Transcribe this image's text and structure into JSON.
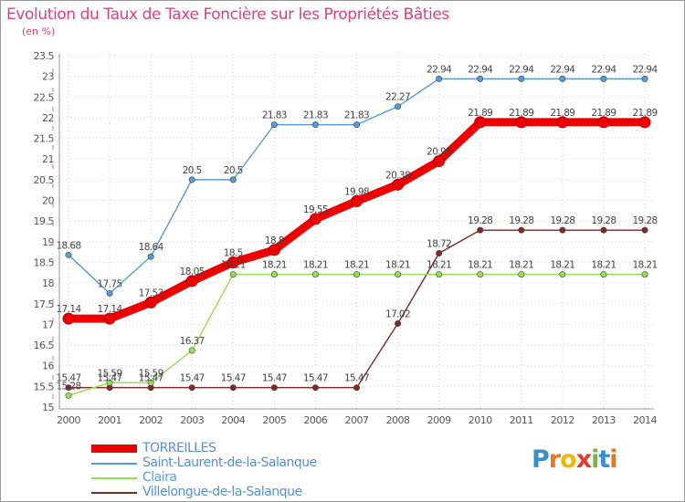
{
  "chart_data": {
    "type": "line",
    "title": "Evolution du Taux de Taxe Foncière sur les Propriétés Bâties",
    "ylabel": "(en %)",
    "xlabel": "",
    "categories": [
      "2000",
      "2001",
      "2002",
      "2003",
      "2004",
      "2005",
      "2006",
      "2007",
      "2008",
      "2009",
      "2010",
      "2011",
      "2012",
      "2013",
      "2014"
    ],
    "ylim": [
      15,
      23.5
    ],
    "yticks": [
      "15",
      "15.5",
      "16",
      "16.5",
      "17",
      "17.5",
      "18",
      "18.5",
      "19",
      "19.5",
      "20",
      "20.5",
      "21",
      "21.5",
      "22",
      "22.5",
      "23",
      "23.5"
    ],
    "grid": "dotted",
    "legend_position": "bottom-left",
    "series": [
      {
        "name": "TORREILLES",
        "color": "#ee0000",
        "width": "thick",
        "values": [
          17.14,
          17.14,
          17.53,
          18.05,
          18.5,
          18.8,
          19.55,
          19.98,
          20.38,
          20.95,
          21.89,
          21.89,
          21.89,
          21.89,
          21.89
        ],
        "labels": [
          "17.14",
          "17.14",
          "17.53",
          "18.05",
          "18.5",
          "18.8",
          "19.55",
          "19.98",
          "20.38",
          "20.95",
          "21.89",
          "21.89",
          "21.89",
          "21.89",
          "21.89"
        ]
      },
      {
        "name": "Saint-Laurent-de-la-Salanque",
        "color": "#5b9bd5",
        "width": "thin",
        "values": [
          18.68,
          17.75,
          18.64,
          20.5,
          20.5,
          21.83,
          21.83,
          21.83,
          22.27,
          22.94,
          22.94,
          22.94,
          22.94,
          22.94,
          22.94
        ],
        "labels": [
          "18.68",
          "17.75",
          "18.64",
          "20.5",
          "20.5",
          "21.83",
          "21.83",
          "21.83",
          "22.27",
          "22.94",
          "22.94",
          "22.94",
          "22.94",
          "22.94",
          "22.94"
        ]
      },
      {
        "name": "Claira",
        "color": "#99dd55",
        "width": "thin",
        "values": [
          15.28,
          15.59,
          15.59,
          16.37,
          18.21,
          18.21,
          18.21,
          18.21,
          18.21,
          18.21,
          18.21,
          18.21,
          18.21,
          18.21,
          18.21
        ],
        "labels": [
          "15.28",
          "15.59",
          "15.59",
          "16.37",
          "18.21",
          "18.21",
          "18.21",
          "18.21",
          "18.21",
          "18.21",
          "18.21",
          "18.21",
          "18.21",
          "18.21",
          "18.21"
        ]
      },
      {
        "name": "Villelongue-de-la-Salanque",
        "color": "#7b2b2b",
        "width": "thin",
        "values": [
          15.47,
          15.47,
          15.47,
          15.47,
          15.47,
          15.47,
          15.47,
          15.47,
          17.02,
          18.72,
          19.28,
          19.28,
          19.28,
          19.28,
          19.28
        ],
        "labels": [
          "15.47",
          "15.47",
          "15.47",
          "15.47",
          "15.47",
          "15.47",
          "15.47",
          "15.47",
          "17.02",
          "18.72",
          "19.28",
          "19.28",
          "19.28",
          "19.28",
          "19.28"
        ]
      }
    ]
  },
  "logo": {
    "letters": [
      "P",
      "r",
      "o",
      "x",
      "i",
      "t",
      "i"
    ],
    "colors": [
      "#3a8fd0",
      "#e87722",
      "#f2b705",
      "#e03c31",
      "#7cb342",
      "#3a8fd0",
      "#e87722"
    ]
  }
}
